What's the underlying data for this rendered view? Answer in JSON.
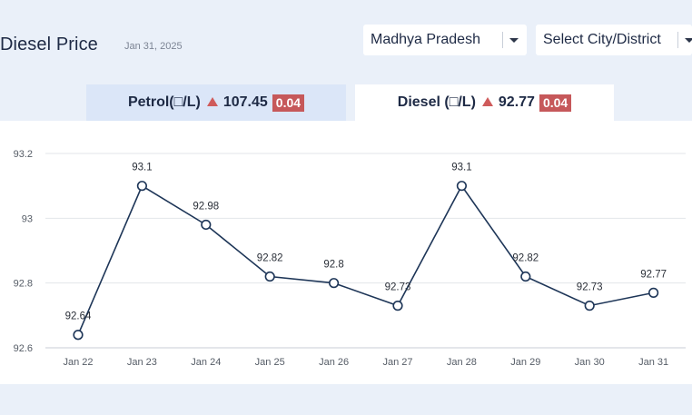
{
  "header": {
    "title": "Diesel Price",
    "date": "Jan 31, 2025"
  },
  "selects": {
    "state": "Madhya Pradesh",
    "city": "Select City/District"
  },
  "tabs": {
    "petrol": {
      "label": "Petrol(□/L)",
      "price": "107.45",
      "change": "0.04"
    },
    "diesel": {
      "label": "Diesel (□/L)",
      "price": "92.77",
      "change": "0.04"
    }
  },
  "colors": {
    "up_indicator": "#cf5b5b",
    "line": "#1d3557"
  },
  "chart_data": {
    "type": "line",
    "categories": [
      "Jan 22",
      "Jan 23",
      "Jan 24",
      "Jan 25",
      "Jan 26",
      "Jan 27",
      "Jan 28",
      "Jan 29",
      "Jan 30",
      "Jan 31"
    ],
    "values": [
      92.64,
      93.1,
      92.98,
      92.82,
      92.8,
      92.73,
      93.1,
      92.82,
      92.73,
      92.77
    ],
    "data_labels": [
      "92.64",
      "93.1",
      "92.98",
      "92.82",
      "92.8",
      "92.73",
      "93.1",
      "92.82",
      "92.73",
      "92.77"
    ],
    "yticks": [
      "92.6",
      "92.8",
      "93",
      "93.2"
    ],
    "ytick_values": [
      92.6,
      92.8,
      93.0,
      93.2
    ],
    "ylim": [
      92.6,
      93.2
    ],
    "grid": true,
    "title": "",
    "xlabel": "",
    "ylabel": ""
  }
}
